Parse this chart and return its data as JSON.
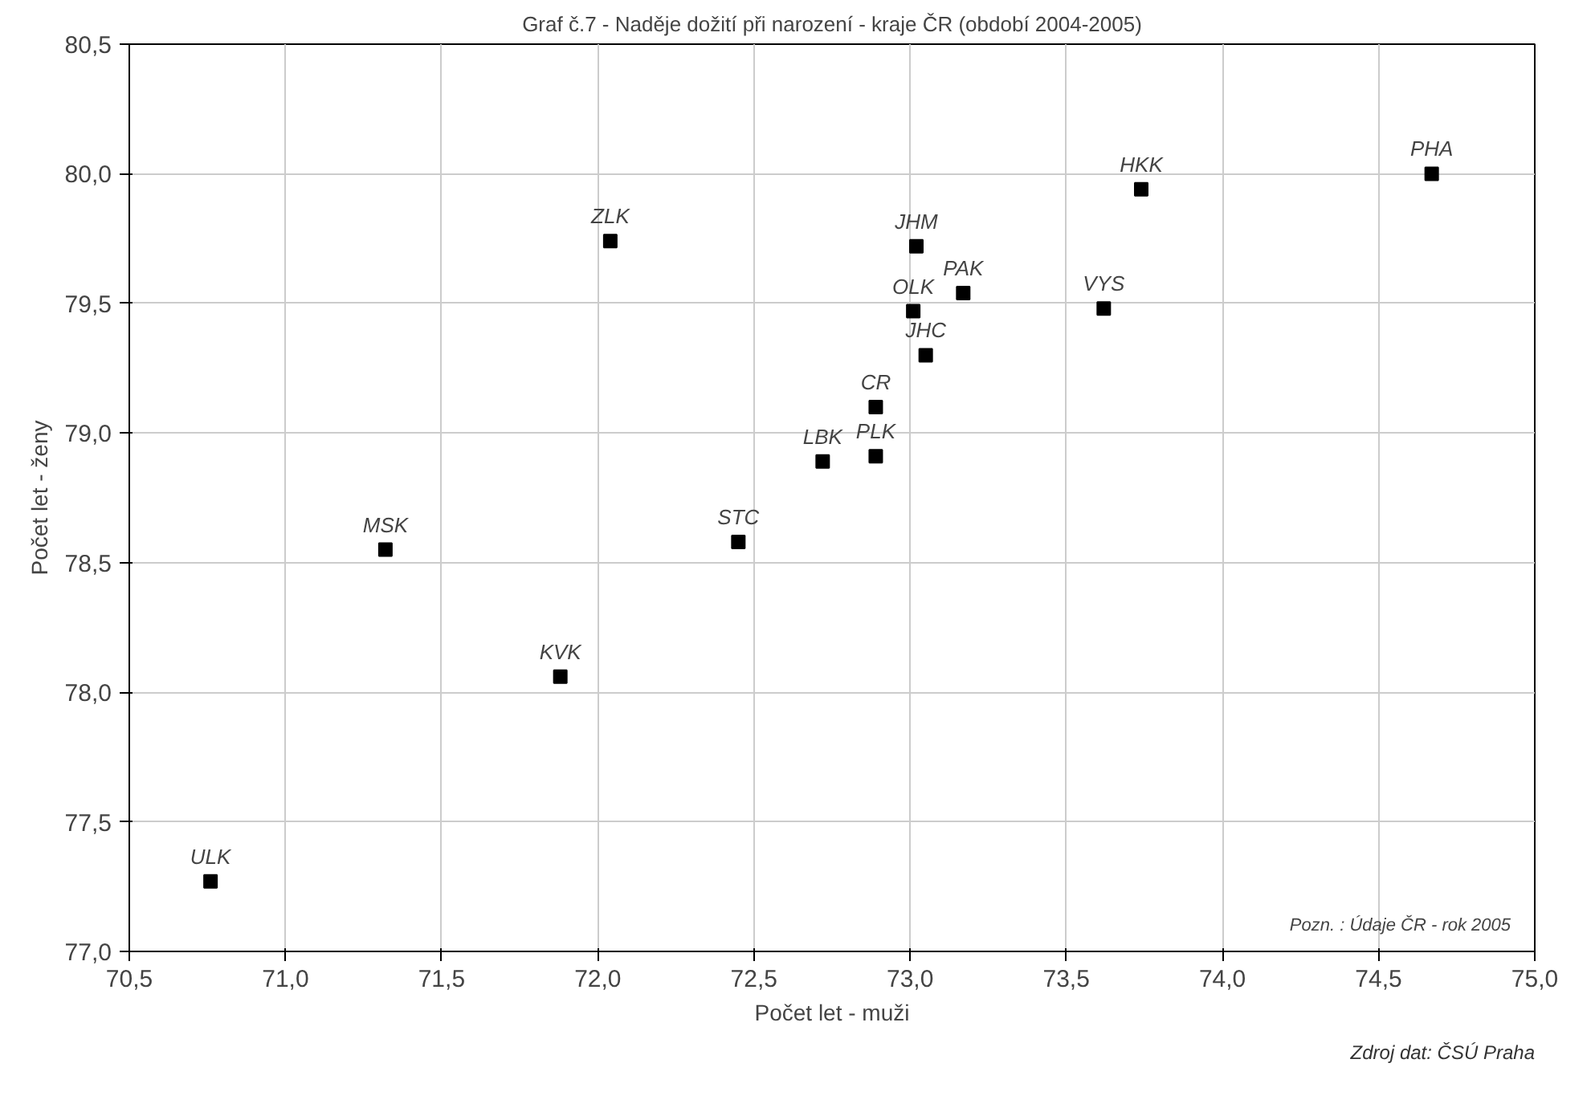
{
  "chart_data": {
    "type": "scatter",
    "title": "Graf č.7 - Naděje dožití při narození - kraje ČR (období 2004-2005)",
    "xlabel": "Počet let - muži",
    "ylabel": "Počet let - ženy",
    "x": [
      70.76,
      71.88,
      71.32,
      72.04,
      72.45,
      73.74,
      74.67,
      73.02,
      73.17,
      73.01,
      73.62,
      73.05,
      72.89,
      72.89,
      72.72
    ],
    "series": [
      {
        "color": "#000000",
        "values": [
          77.27,
          78.06,
          78.55,
          79.74,
          78.58,
          79.94,
          80.0,
          79.72,
          79.54,
          79.47,
          79.48,
          79.3,
          79.1,
          78.91,
          78.89
        ]
      }
    ],
    "marker": "square",
    "grid": true,
    "xlim": [
      70.5,
      75.0
    ],
    "ylim": [
      77.0,
      80.5
    ],
    "xticks": [
      {
        "value": 70.5,
        "label": "70,5"
      },
      {
        "value": 71.0,
        "label": "71,0"
      },
      {
        "value": 71.5,
        "label": "71,5"
      },
      {
        "value": 72.0,
        "label": "72,0"
      },
      {
        "value": 72.5,
        "label": "72,5"
      },
      {
        "value": 73.0,
        "label": "73,0"
      },
      {
        "value": 73.5,
        "label": "73,5"
      },
      {
        "value": 74.0,
        "label": "74,0"
      },
      {
        "value": 74.5,
        "label": "74,5"
      },
      {
        "value": 75.0,
        "label": "75,0"
      }
    ],
    "yticks": [
      {
        "value": 77.0,
        "label": "77,0"
      },
      {
        "value": 77.5,
        "label": "77,5"
      },
      {
        "value": 78.0,
        "label": "78,0"
      },
      {
        "value": 78.5,
        "label": "78,5"
      },
      {
        "value": 79.0,
        "label": "79,0"
      },
      {
        "value": 79.5,
        "label": "79,5"
      },
      {
        "value": 80.0,
        "label": "80,0"
      },
      {
        "value": 80.5,
        "label": "80,5"
      }
    ],
    "annotations": [
      {
        "text": "ULK",
        "x": 70.76,
        "y": 77.27
      },
      {
        "text": "KVK",
        "x": 71.88,
        "y": 78.06
      },
      {
        "text": "MSK",
        "x": 71.32,
        "y": 78.55
      },
      {
        "text": "ZLK",
        "x": 72.04,
        "y": 79.74
      },
      {
        "text": "STC",
        "x": 72.45,
        "y": 78.58
      },
      {
        "text": "HKK",
        "x": 73.74,
        "y": 79.94
      },
      {
        "text": "PHA",
        "x": 74.67,
        "y": 80.0
      },
      {
        "text": "JHM",
        "x": 73.02,
        "y": 79.72
      },
      {
        "text": "PAK",
        "x": 73.17,
        "y": 79.54
      },
      {
        "text": "OLK",
        "x": 73.01,
        "y": 79.47
      },
      {
        "text": "VYS",
        "x": 73.62,
        "y": 79.48
      },
      {
        "text": "JHC",
        "x": 73.05,
        "y": 79.3
      },
      {
        "text": "CR",
        "x": 72.89,
        "y": 79.1
      },
      {
        "text": "PLK",
        "x": 72.89,
        "y": 78.91
      },
      {
        "text": "LBK",
        "x": 72.72,
        "y": 78.89
      },
      "Pozn. : Údaje ČR - rok 2005",
      "Zdroj dat: ČSÚ Praha"
    ]
  }
}
